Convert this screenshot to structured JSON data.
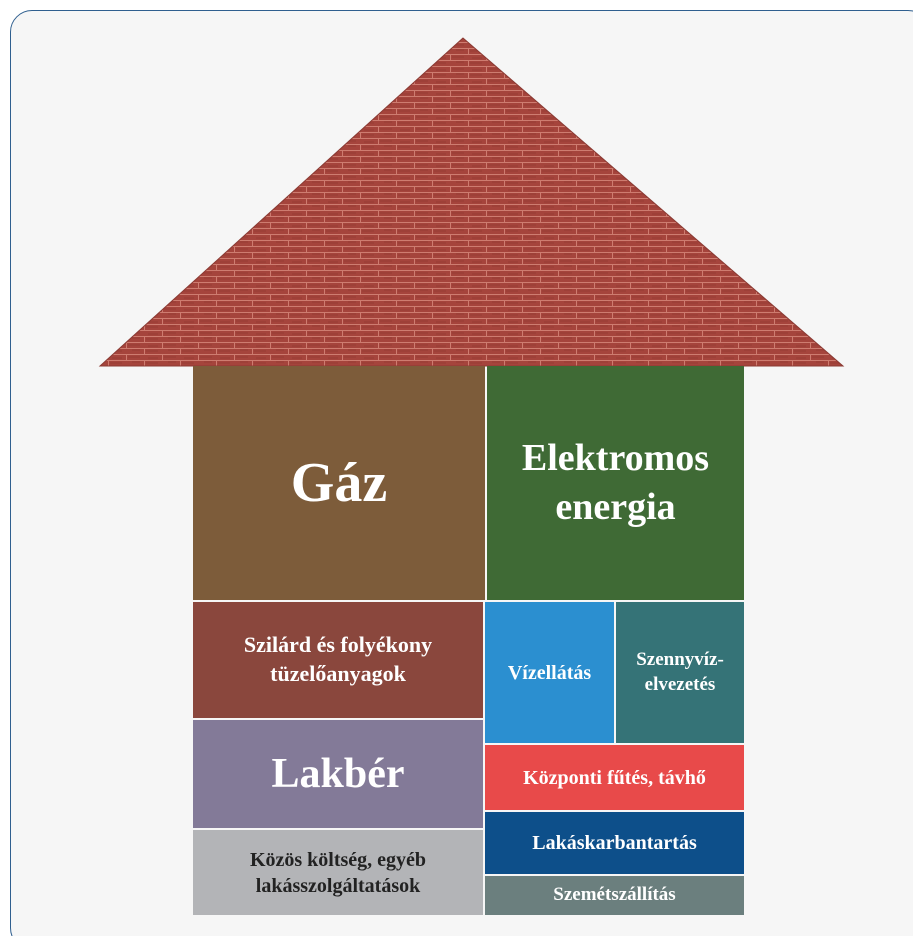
{
  "nodes": [
    {
      "label": "Gáz"
    },
    {
      "label": "Elektromos energia"
    },
    {
      "label": "Szilárd és folyékony tüzelőanyagok"
    },
    {
      "label": "Vízellátás"
    },
    {
      "label": "Szennyvíz-elvezetés"
    },
    {
      "label": "Lakbér"
    },
    {
      "label": "Központi fűtés, távhő"
    },
    {
      "label": "Lakáskarbantartás"
    },
    {
      "label": "Közös költség, egyéb lakásszolgáltatások"
    },
    {
      "label": "Szemétszállítás"
    }
  ]
}
